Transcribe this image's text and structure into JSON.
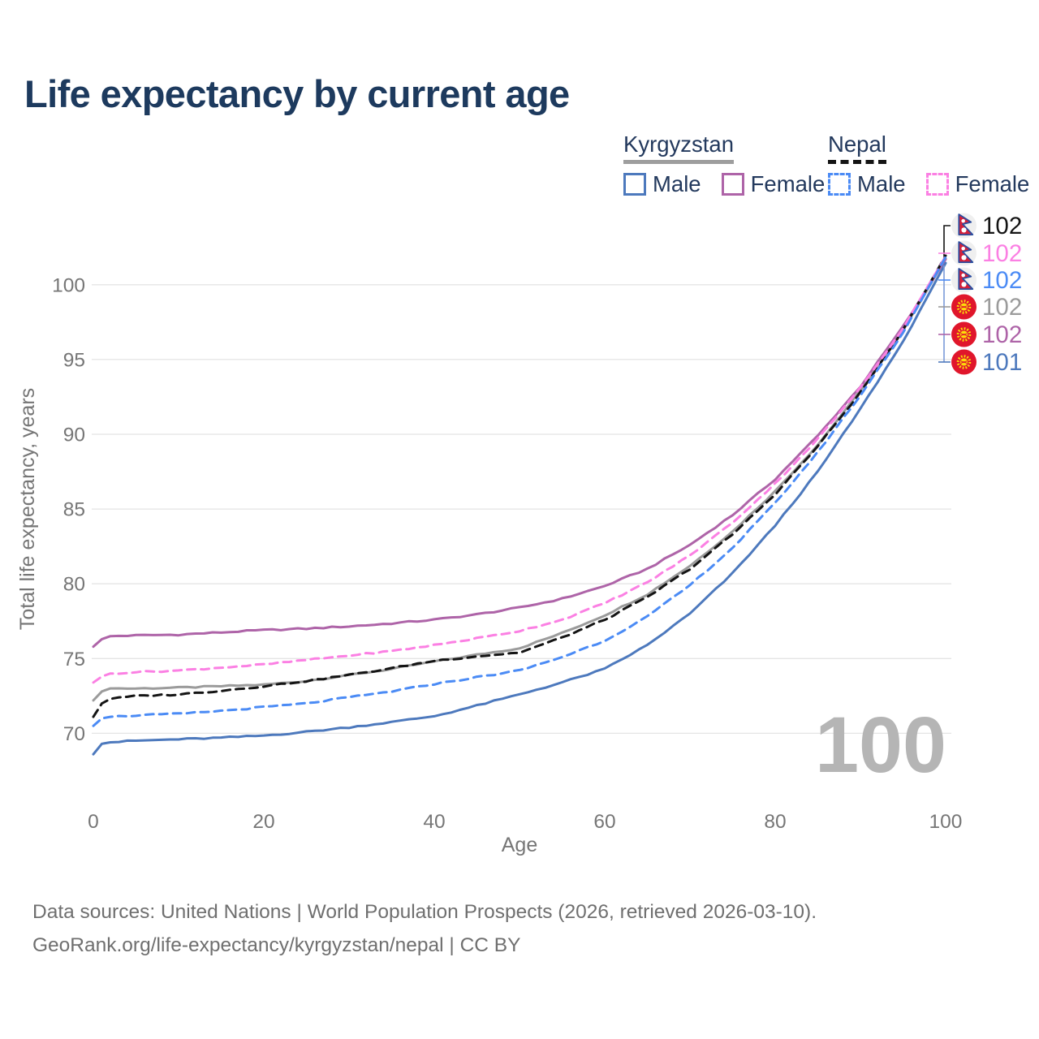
{
  "header": {
    "title": "Life expectancy by current age"
  },
  "legend": {
    "groups": [
      {
        "label": "Kyrgyzstan",
        "underline_style": "solid",
        "underline_color": "#9e9e9e",
        "items": [
          {
            "label": "Male",
            "color": "#4d79bd",
            "dashed": false
          },
          {
            "label": "Female",
            "color": "#ae64a8",
            "dashed": false
          }
        ]
      },
      {
        "label": "Nepal",
        "underline_style": "dashed",
        "underline_color": "#141414",
        "items": [
          {
            "label": "Male",
            "color": "#4b8bf5",
            "dashed": true
          },
          {
            "label": "Female",
            "color": "#fb80e3",
            "dashed": true
          }
        ]
      }
    ]
  },
  "chart_data": {
    "type": "line",
    "title": "Life expectancy by current age",
    "xlabel": "Age",
    "ylabel": "Total life expectancy, years",
    "xlim": [
      0,
      100
    ],
    "ylim": [
      68,
      103
    ],
    "xticks": [
      0,
      20,
      40,
      60,
      80,
      100
    ],
    "yticks": [
      70,
      75,
      80,
      85,
      90,
      95,
      100
    ],
    "grid": "horizontal-only",
    "grid_color": "#e4e4e4",
    "tick_color": "#767676",
    "legend_position": "top-right",
    "watermark": "100",
    "series": [
      {
        "name": "Kyrgyzstan Total",
        "country": "Kyrgyzstan",
        "sex": "Both",
        "color": "#9b9b9b",
        "dash": "solid",
        "end_label": "102",
        "points": [
          [
            0,
            72.2
          ],
          [
            1,
            72.8
          ],
          [
            2,
            73.0
          ],
          [
            5,
            73.0
          ],
          [
            10,
            73.05
          ],
          [
            15,
            73.15
          ],
          [
            20,
            73.25
          ],
          [
            25,
            73.5
          ],
          [
            30,
            73.9
          ],
          [
            35,
            74.3
          ],
          [
            40,
            74.8
          ],
          [
            45,
            75.25
          ],
          [
            50,
            75.7
          ],
          [
            55,
            76.7
          ],
          [
            60,
            77.9
          ],
          [
            65,
            79.3
          ],
          [
            70,
            81.2
          ],
          [
            75,
            83.5
          ],
          [
            80,
            86.2
          ],
          [
            85,
            89.3
          ],
          [
            90,
            92.9
          ],
          [
            95,
            96.9
          ],
          [
            100,
            101.75
          ]
        ]
      },
      {
        "name": "Kyrgyzstan Female",
        "country": "Kyrgyzstan",
        "sex": "Female",
        "color": "#ae64a8",
        "dash": "solid",
        "end_label": "102",
        "points": [
          [
            0,
            75.8
          ],
          [
            1,
            76.3
          ],
          [
            2,
            76.5
          ],
          [
            5,
            76.55
          ],
          [
            10,
            76.6
          ],
          [
            15,
            76.75
          ],
          [
            20,
            76.9
          ],
          [
            25,
            77.0
          ],
          [
            30,
            77.15
          ],
          [
            35,
            77.35
          ],
          [
            40,
            77.6
          ],
          [
            45,
            77.95
          ],
          [
            50,
            78.4
          ],
          [
            55,
            79.0
          ],
          [
            60,
            79.85
          ],
          [
            65,
            81.0
          ],
          [
            70,
            82.6
          ],
          [
            75,
            84.6
          ],
          [
            80,
            87.0
          ],
          [
            85,
            89.9
          ],
          [
            90,
            93.2
          ],
          [
            95,
            97.2
          ],
          [
            100,
            101.7
          ]
        ]
      },
      {
        "name": "Kyrgyzstan Male",
        "country": "Kyrgyzstan",
        "sex": "Male",
        "color": "#4d79bd",
        "dash": "solid",
        "end_label": "101",
        "points": [
          [
            0,
            68.6
          ],
          [
            1,
            69.3
          ],
          [
            2,
            69.4
          ],
          [
            5,
            69.5
          ],
          [
            10,
            69.6
          ],
          [
            15,
            69.7
          ],
          [
            20,
            69.85
          ],
          [
            25,
            70.1
          ],
          [
            30,
            70.4
          ],
          [
            35,
            70.75
          ],
          [
            40,
            71.15
          ],
          [
            45,
            71.85
          ],
          [
            50,
            72.6
          ],
          [
            55,
            73.4
          ],
          [
            60,
            74.3
          ],
          [
            65,
            75.9
          ],
          [
            70,
            78.0
          ],
          [
            75,
            80.7
          ],
          [
            80,
            83.9
          ],
          [
            85,
            87.5
          ],
          [
            90,
            91.7
          ],
          [
            95,
            96.2
          ],
          [
            100,
            101.45
          ]
        ]
      },
      {
        "name": "Nepal Total",
        "country": "Nepal",
        "sex": "Both",
        "color": "#141414",
        "dash": "dashed",
        "end_label": "102",
        "points": [
          [
            0,
            71.1
          ],
          [
            1,
            72.0
          ],
          [
            2,
            72.3
          ],
          [
            5,
            72.5
          ],
          [
            10,
            72.6
          ],
          [
            15,
            72.85
          ],
          [
            20,
            73.15
          ],
          [
            25,
            73.5
          ],
          [
            30,
            73.9
          ],
          [
            35,
            74.35
          ],
          [
            40,
            74.85
          ],
          [
            45,
            75.15
          ],
          [
            50,
            75.4
          ],
          [
            55,
            76.4
          ],
          [
            60,
            77.6
          ],
          [
            65,
            79.1
          ],
          [
            70,
            81.0
          ],
          [
            75,
            83.3
          ],
          [
            80,
            86.0
          ],
          [
            85,
            89.2
          ],
          [
            90,
            92.8
          ],
          [
            95,
            96.95
          ],
          [
            100,
            101.95
          ]
        ]
      },
      {
        "name": "Nepal Female",
        "country": "Nepal",
        "sex": "Female",
        "color": "#fb80e3",
        "dash": "dashed",
        "end_label": "102",
        "points": [
          [
            0,
            73.4
          ],
          [
            1,
            73.8
          ],
          [
            2,
            74.0
          ],
          [
            5,
            74.1
          ],
          [
            10,
            74.2
          ],
          [
            15,
            74.4
          ],
          [
            20,
            74.6
          ],
          [
            25,
            74.9
          ],
          [
            30,
            75.2
          ],
          [
            35,
            75.5
          ],
          [
            40,
            75.9
          ],
          [
            45,
            76.35
          ],
          [
            50,
            76.85
          ],
          [
            55,
            77.6
          ],
          [
            60,
            78.7
          ],
          [
            65,
            80.1
          ],
          [
            70,
            81.9
          ],
          [
            75,
            84.1
          ],
          [
            80,
            86.7
          ],
          [
            85,
            89.7
          ],
          [
            90,
            93.1
          ],
          [
            95,
            97.1
          ],
          [
            100,
            101.9
          ]
        ]
      },
      {
        "name": "Nepal Male",
        "country": "Nepal",
        "sex": "Male",
        "color": "#4b8bf5",
        "dash": "dashed",
        "end_label": "102",
        "points": [
          [
            0,
            70.5
          ],
          [
            1,
            71.0
          ],
          [
            2,
            71.1
          ],
          [
            5,
            71.2
          ],
          [
            10,
            71.3
          ],
          [
            15,
            71.5
          ],
          [
            20,
            71.75
          ],
          [
            25,
            72.0
          ],
          [
            30,
            72.4
          ],
          [
            35,
            72.8
          ],
          [
            40,
            73.3
          ],
          [
            45,
            73.75
          ],
          [
            50,
            74.2
          ],
          [
            55,
            75.1
          ],
          [
            60,
            76.2
          ],
          [
            65,
            77.8
          ],
          [
            70,
            79.9
          ],
          [
            75,
            82.4
          ],
          [
            80,
            85.4
          ],
          [
            85,
            88.8
          ],
          [
            90,
            92.6
          ],
          [
            95,
            96.8
          ],
          [
            100,
            101.85
          ]
        ]
      }
    ],
    "end_labels": [
      {
        "text": "102",
        "color": "#141414",
        "flag": "nepal",
        "series": "Nepal Total"
      },
      {
        "text": "102",
        "color": "#fb80e3",
        "flag": "nepal",
        "series": "Nepal Female"
      },
      {
        "text": "102",
        "color": "#4b8bf5",
        "flag": "nepal",
        "series": "Nepal Male"
      },
      {
        "text": "102",
        "color": "#9b9b9b",
        "flag": "kyrgyzstan",
        "series": "Kyrgyzstan Total"
      },
      {
        "text": "102",
        "color": "#ae64a8",
        "flag": "kyrgyzstan",
        "series": "Kyrgyzstan Female"
      },
      {
        "text": "101",
        "color": "#4d79bd",
        "flag": "kyrgyzstan",
        "series": "Kyrgyzstan Male"
      }
    ]
  },
  "footer": {
    "line1": "Data sources: United Nations | World Population Prospects (2026, retrieved 2026-03-10).",
    "line2": "GeoRank.org/life-expectancy/kyrgyzstan/nepal | CC BY"
  }
}
